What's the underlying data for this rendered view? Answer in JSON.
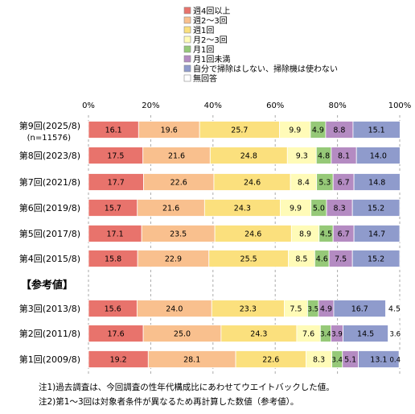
{
  "chart_data": {
    "type": "bar",
    "orientation": "horizontal-stacked-100",
    "xlim": [
      0,
      100
    ],
    "x_ticks": [
      "0%",
      "20%",
      "40%",
      "60%",
      "80%",
      "100%"
    ],
    "grid": "vertical-dashed",
    "legend_position": "top",
    "series": [
      {
        "name": "週4回以上",
        "color": "#E8736C"
      },
      {
        "name": "週2～3回",
        "color": "#F9C08E"
      },
      {
        "name": "週1回",
        "color": "#FBE07D"
      },
      {
        "name": "月2～3回",
        "color": "#FFFBB8"
      },
      {
        "name": "月1回",
        "color": "#96C978"
      },
      {
        "name": "月1回未満",
        "color": "#B48BC2"
      },
      {
        "name": "自分で掃除はしない、掃除機は使わない",
        "color": "#8F9BCC"
      },
      {
        "name": "無回答",
        "color": "#FFFFFF"
      }
    ],
    "rows": [
      {
        "label": "第9回(2025/8)",
        "sublabel": "(n=11576)",
        "values": [
          16.1,
          19.6,
          25.7,
          9.9,
          4.9,
          8.8,
          15.1,
          0
        ]
      },
      {
        "label": "第8回(2023/8)",
        "sublabel": "",
        "values": [
          17.5,
          21.6,
          24.8,
          9.3,
          4.8,
          8.1,
          14.0,
          0
        ]
      },
      {
        "label": "第7回(2021/8)",
        "sublabel": "",
        "values": [
          17.7,
          22.6,
          24.6,
          8.4,
          5.3,
          6.7,
          14.8,
          0
        ]
      },
      {
        "label": "第6回(2019/8)",
        "sublabel": "",
        "values": [
          15.7,
          21.6,
          24.3,
          9.9,
          5.0,
          8.3,
          15.2,
          0
        ]
      },
      {
        "label": "第5回(2017/8)",
        "sublabel": "",
        "values": [
          17.1,
          23.5,
          24.6,
          8.9,
          4.5,
          6.7,
          14.7,
          0
        ]
      },
      {
        "label": "第4回(2015/8)",
        "sublabel": "",
        "values": [
          15.8,
          22.9,
          25.5,
          8.5,
          4.6,
          7.5,
          15.2,
          0
        ]
      },
      {
        "label": "第3回(2013/8)",
        "sublabel": "",
        "values": [
          15.6,
          24.0,
          23.3,
          7.5,
          3.5,
          4.9,
          16.7,
          4.5
        ]
      },
      {
        "label": "第2回(2011/8)",
        "sublabel": "",
        "values": [
          17.6,
          25.0,
          24.3,
          7.6,
          3.4,
          3.9,
          14.5,
          3.6
        ]
      },
      {
        "label": "第1回(2009/8)",
        "sublabel": "",
        "values": [
          19.2,
          28.1,
          22.6,
          8.3,
          3.4,
          5.1,
          13.1,
          0.4
        ]
      }
    ],
    "group_header": "【参考値】",
    "notes": [
      "注1)過去調査は、今回調査の性年代構成比にあわせてウエイトバックした値。",
      "注2)第1～3回は対象者条件が異なるため再計算した数値（参考値）。"
    ]
  }
}
